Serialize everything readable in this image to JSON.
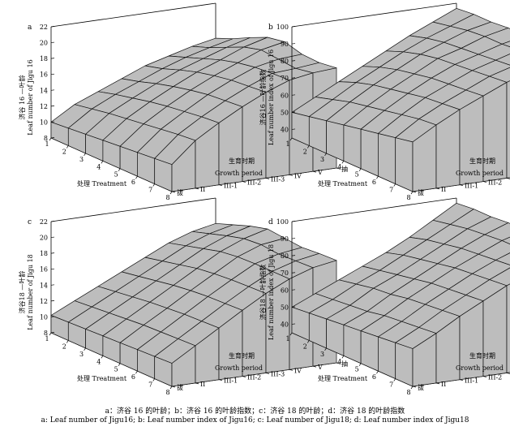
{
  "caption_cn": "a：济谷 16 的叶龄；b：济谷 16 的叶龄指数；c：济谷 18 的叶龄；d：济谷 18 的叶龄指数",
  "caption_en": "a: Leaf number of Jigu16; b: Leaf number index of Jigu16; c: Leaf number of Jigu18; d: Leaf number index of Jigu18",
  "colors": {
    "surface": "#bdbdbd",
    "edge": "#111111",
    "axis": "#000000"
  },
  "chart_data": [
    {
      "type": "surface3d",
      "panel_label": "a",
      "zlabel_cn": "济谷 16 —叶龄",
      "zlabel_en": "Leaf number of Jigu 16",
      "xlabel": "处理 Treatment",
      "ylabel_cn": "生育时期",
      "ylabel_en": "Growth period",
      "x_ticks": [
        "1",
        "2",
        "3",
        "4",
        "5",
        "6",
        "7",
        "8"
      ],
      "y_ticks": [
        "拔",
        "II",
        "III-1",
        "III-2",
        "III-3",
        "IV",
        "V",
        "抽"
      ],
      "z_ticks": [
        "8",
        "10",
        "12",
        "14",
        "16",
        "18",
        "20",
        "22"
      ],
      "zlim": [
        8,
        22
      ],
      "values": [
        [
          10.0,
          10.2,
          10.4,
          10.6,
          10.8,
          11.0,
          11.2,
          11.4
        ],
        [
          11.8,
          12.2,
          12.6,
          12.9,
          13.2,
          13.5,
          13.8,
          14.0
        ],
        [
          13.0,
          13.6,
          14.1,
          14.6,
          15.0,
          15.3,
          15.6,
          15.8
        ],
        [
          14.2,
          14.8,
          15.5,
          16.1,
          16.6,
          17.0,
          17.2,
          17.4
        ],
        [
          15.4,
          16.0,
          16.8,
          17.5,
          18.0,
          18.4,
          18.6,
          18.8
        ],
        [
          16.2,
          17.0,
          17.8,
          18.6,
          19.2,
          19.6,
          19.8,
          19.9
        ],
        [
          17.0,
          17.8,
          18.8,
          19.8,
          20.4,
          20.2,
          20.0,
          20.4
        ],
        [
          17.6,
          18.5,
          19.6,
          20.6,
          21.0,
          20.4,
          20.3,
          20.6
        ]
      ]
    },
    {
      "type": "surface3d",
      "panel_label": "b",
      "zlabel_cn": "济谷16 —叶龄指数",
      "zlabel_en": "Leaf number index of Jigu 16",
      "xlabel": "处理 Treatment",
      "ylabel_cn": "生育时期",
      "ylabel_en": "Growth period",
      "x_ticks": [
        "1",
        "2",
        "3",
        "4",
        "5",
        "6",
        "7",
        "8"
      ],
      "y_ticks": [
        "拔",
        "II",
        "III-1",
        "III-2",
        "III-3",
        "IV",
        "V",
        "抽"
      ],
      "z_ticks": [
        "40",
        "50",
        "60",
        "70",
        "80",
        "90",
        "100"
      ],
      "zlim": [
        35,
        100
      ],
      "values": [
        [
          50,
          52,
          54,
          56,
          58,
          60,
          62,
          64
        ],
        [
          57,
          60,
          63,
          65,
          67,
          69,
          71,
          72
        ],
        [
          64,
          68,
          71,
          73,
          75,
          77,
          78,
          79
        ],
        [
          71,
          75,
          78,
          80,
          82,
          83,
          84,
          85
        ],
        [
          78,
          82,
          85,
          87,
          88,
          89,
          90,
          91
        ],
        [
          85,
          88,
          90,
          91,
          92,
          93,
          94,
          95
        ],
        [
          91,
          93,
          95,
          96,
          96,
          97,
          97,
          98
        ],
        [
          97,
          98,
          98,
          99,
          99,
          99,
          100,
          100
        ]
      ]
    },
    {
      "type": "surface3d",
      "panel_label": "c",
      "zlabel_cn": "济谷18 —叶龄",
      "zlabel_en": "Leaf number of Jigu 18",
      "xlabel": "处理 Treatment",
      "ylabel_cn": "生育时期",
      "ylabel_en": "Growth period",
      "x_ticks": [
        "1",
        "2",
        "3",
        "4",
        "5",
        "6",
        "7",
        "8"
      ],
      "y_ticks": [
        "拔",
        "II",
        "III-1",
        "III-2",
        "III-3",
        "IV",
        "V",
        "抽"
      ],
      "z_ticks": [
        "8",
        "10",
        "12",
        "14",
        "16",
        "18",
        "20",
        "22"
      ],
      "zlim": [
        8,
        22
      ],
      "values": [
        [
          10.2,
          10.3,
          10.4,
          10.5,
          10.6,
          10.7,
          10.8,
          10.9
        ],
        [
          11.6,
          11.8,
          12.0,
          12.2,
          12.4,
          12.5,
          12.6,
          12.7
        ],
        [
          13.0,
          13.3,
          13.6,
          13.9,
          14.1,
          14.3,
          14.4,
          14.5
        ],
        [
          14.4,
          14.8,
          15.2,
          15.6,
          15.9,
          16.1,
          16.2,
          16.3
        ],
        [
          15.8,
          16.3,
          16.8,
          17.3,
          17.6,
          17.8,
          17.9,
          18.0
        ],
        [
          17.2,
          17.8,
          18.4,
          19.0,
          19.3,
          19.4,
          19.4,
          19.4
        ],
        [
          18.2,
          18.9,
          19.6,
          20.2,
          20.4,
          20.2,
          20.3,
          20.4
        ],
        [
          18.8,
          19.6,
          20.4,
          21.0,
          20.8,
          20.6,
          20.8,
          20.9
        ]
      ]
    },
    {
      "type": "surface3d",
      "panel_label": "d",
      "zlabel_cn": "济谷18 —叶龄指数",
      "zlabel_en": "Leaf number index of Jigu 18",
      "xlabel": "处理 Treatment",
      "ylabel_cn": "生育时期",
      "ylabel_en": "Growth period",
      "x_ticks": [
        "1",
        "2",
        "3",
        "4",
        "5",
        "6",
        "7",
        "8"
      ],
      "y_ticks": [
        "拔",
        "II",
        "III-1",
        "III-2",
        "III-3",
        "IV",
        "V",
        "抽"
      ],
      "z_ticks": [
        "40",
        "50",
        "60",
        "70",
        "80",
        "90",
        "100"
      ],
      "zlim": [
        35,
        100
      ],
      "values": [
        [
          50,
          51,
          52,
          53,
          54,
          55,
          56,
          57
        ],
        [
          56,
          57,
          58,
          59,
          61,
          62,
          63,
          64
        ],
        [
          62,
          64,
          66,
          67,
          69,
          70,
          71,
          72
        ],
        [
          68,
          70,
          72,
          74,
          76,
          77,
          78,
          79
        ],
        [
          74,
          77,
          79,
          81,
          83,
          84,
          85,
          86
        ],
        [
          81,
          84,
          86,
          88,
          89,
          90,
          91,
          91
        ],
        [
          89,
          91,
          93,
          94,
          95,
          95,
          96,
          96
        ],
        [
          97,
          98,
          98,
          99,
          99,
          99,
          100,
          100
        ]
      ]
    }
  ]
}
